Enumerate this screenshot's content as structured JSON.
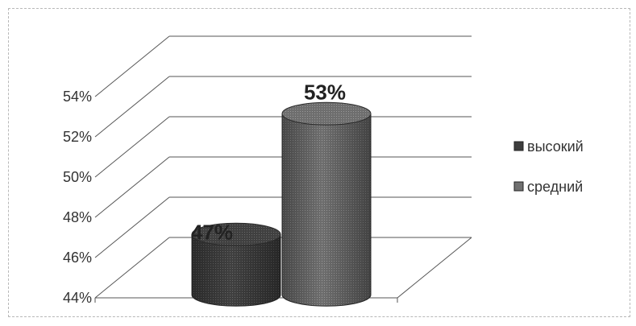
{
  "chart_data": {
    "type": "bar",
    "style": "3d-cylinder",
    "categories": [
      "высокий",
      "средний"
    ],
    "values": [
      47,
      53
    ],
    "data_labels": [
      "47%",
      "53%"
    ],
    "ylim": [
      44,
      54
    ],
    "yticks": [
      44,
      46,
      48,
      50,
      52,
      54
    ],
    "ytick_labels": [
      "44%",
      "46%",
      "48%",
      "50%",
      "52%",
      "54%"
    ],
    "grid": true,
    "legend": {
      "position": "right",
      "entries": [
        {
          "label": "высокий",
          "color": "#3d3d3d"
        },
        {
          "label": "средний",
          "color": "#707070"
        }
      ]
    },
    "colors": [
      "#3d3d3d",
      "#707070"
    ]
  }
}
